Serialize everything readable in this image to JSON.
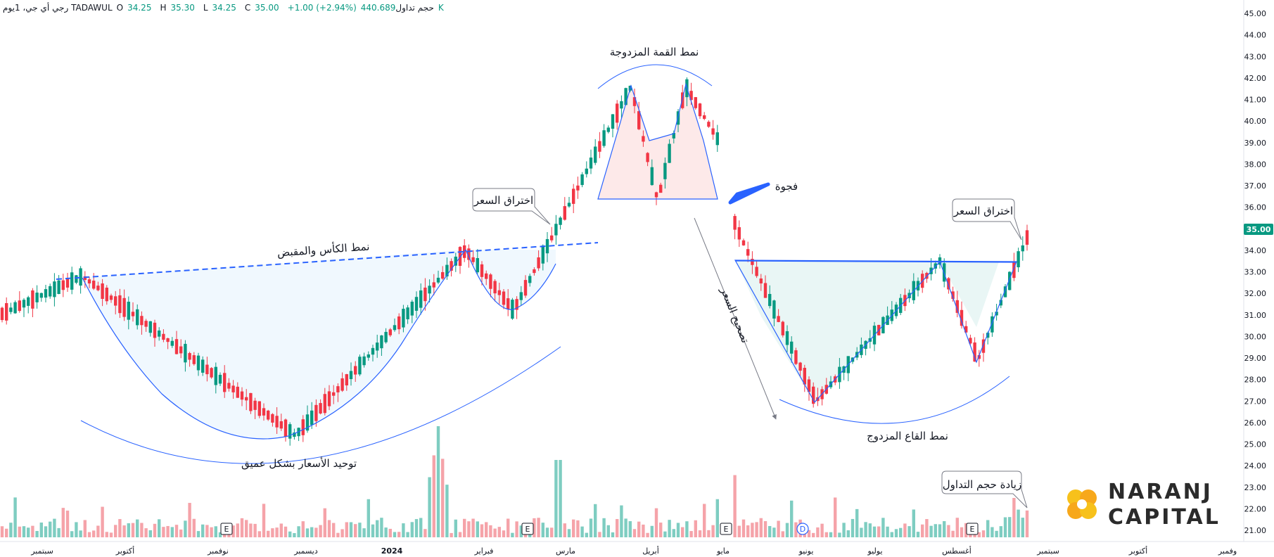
{
  "header": {
    "symbol": "رجي أي جي، 1يوم TADAWUL",
    "open_label": "O",
    "open": "34.25",
    "high_label": "H",
    "high": "35.30",
    "low_label": "L",
    "low": "34.25",
    "close_label": "C",
    "close": "35.00",
    "change": "+1.00 (+2.94%)",
    "volume_label": "حجم تداول",
    "volume": "440.689K"
  },
  "colors": {
    "up": "#089981",
    "down": "#f23645",
    "pattern": "#2962ff",
    "up_volume": "#7ecdc1",
    "down_volume": "#f5a3a9",
    "axis_badge": "#089981"
  },
  "chart_data": {
    "type": "candlestick",
    "title": "",
    "xlabel": "",
    "ylabel": "",
    "ylim": [
      21,
      45
    ],
    "y_ticks": [
      "45.00",
      "44.00",
      "43.00",
      "42.00",
      "41.00",
      "40.00",
      "39.00",
      "38.00",
      "37.00",
      "36.00",
      "35.00",
      "34.00",
      "33.00",
      "32.00",
      "31.00",
      "30.00",
      "29.00",
      "28.00",
      "27.00",
      "26.00",
      "25.00",
      "24.00",
      "23.00",
      "22.00",
      "21.00"
    ],
    "last_price": "35.00",
    "x_ticks": [
      "سبتمبر",
      "أكتوبر",
      "نوفمبر",
      "ديسمبر",
      "2024",
      "فبراير",
      "مارس",
      "أبريل",
      "مايو",
      "يونيو",
      "يوليو",
      "أغسطس",
      "سبتمبر",
      "أكتوبر",
      "وفمبر"
    ],
    "event_markers": [
      "E",
      "E",
      "E",
      "D",
      "E"
    ],
    "key_levels": [
      {
        "date": "Sep 2023",
        "price": 31.0
      },
      {
        "date": "late Sep 2023",
        "price": 32.8
      },
      {
        "date": "mid Dec 2023",
        "price": 25.4
      },
      {
        "date": "early Feb 2024",
        "price": 34.0
      },
      {
        "date": "late Feb 2024",
        "price": 31.2
      },
      {
        "date": "early Apr 2024",
        "price": 41.6
      },
      {
        "date": "mid Apr 2024",
        "price": 36.3
      },
      {
        "date": "late Apr 2024",
        "price": 41.6
      },
      {
        "date": "late Apr 2024 (pre-gap)",
        "price": 38.9
      },
      {
        "date": "early May 2024",
        "price": 35.2
      },
      {
        "date": "early Jun 2024",
        "price": 27.0
      },
      {
        "date": "early Jul 2024",
        "price": 33.5
      },
      {
        "date": "early Aug 2024",
        "price": 28.9
      },
      {
        "date": "late Aug 2024",
        "price": 35.0
      }
    ],
    "annotations": {
      "double_top": "نمط القمة المزدوجة",
      "cup_handle": "نمط الكأس والمقبض",
      "breakout_1": "اختراق السعر",
      "breakout_2": "اختراق السعر",
      "gap": "فجوة",
      "correction": "تصحيح السعر",
      "double_bottom": "نمط القاع المزدوج",
      "consolidation": "توحيد الأسعار بشكل عميق",
      "volume_increase": "زيادة حجم التداول"
    }
  },
  "logo": {
    "line1": "NARANJ",
    "line2": "CAPITAL"
  }
}
